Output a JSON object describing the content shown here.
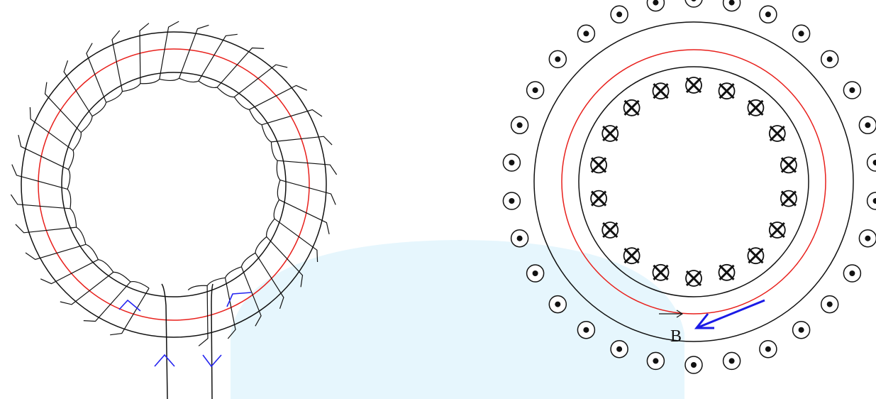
{
  "figure": {
    "colors": {
      "background": "#ffffff",
      "watermark": "#e6f6fd",
      "wire": "#111111",
      "field_line": "#e8201c",
      "current_arrow": "#2424f0",
      "b_vector": "#1a1ae6"
    },
    "left_panel": {
      "winding_turns": 34,
      "lead_arrows": [
        "up",
        "down"
      ]
    },
    "right_panel": {
      "outer_dots_count": 30,
      "inner_crosses_count": 18,
      "field_label": "B",
      "outer_symbol": "dot-in-circle-icon",
      "inner_symbol": "cross-in-circle-icon"
    }
  }
}
